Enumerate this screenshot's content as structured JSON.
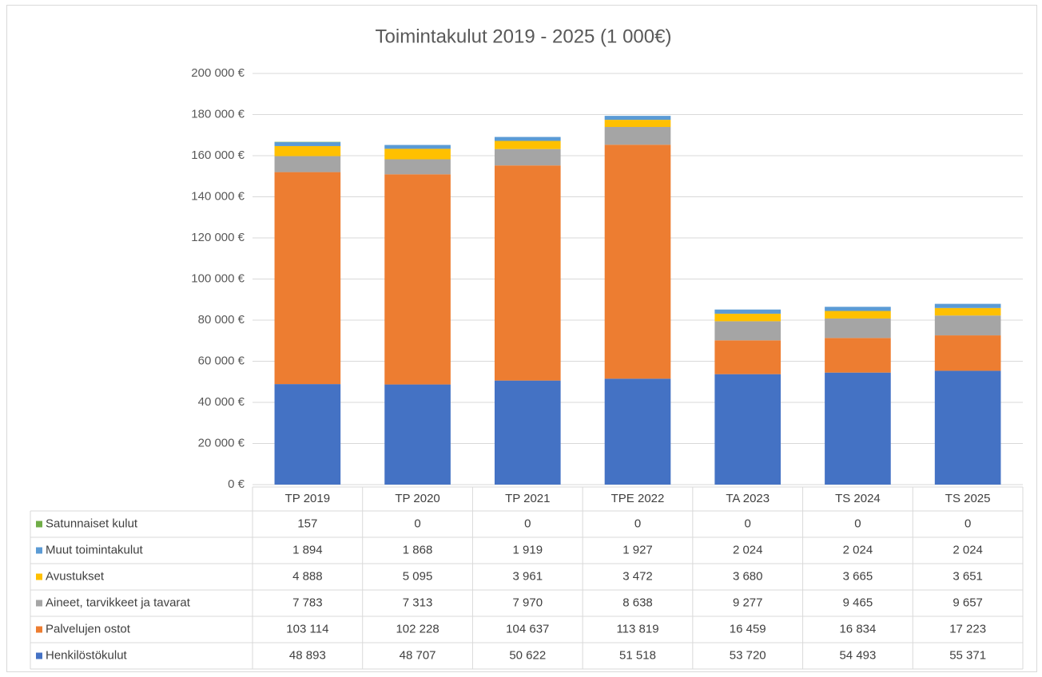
{
  "chart_data": {
    "type": "bar",
    "stacked": true,
    "title": "Toimintakulut 2019 - 2025 (1 000€)",
    "categories": [
      "TP 2019",
      "TP 2020",
      "TP 2021",
      "TPE 2022",
      "TA 2023",
      "TS 2024",
      "TS 2025"
    ],
    "series": [
      {
        "name": "Henkilöstökulut",
        "color": "#4472c4",
        "values": [
          48893,
          48707,
          50622,
          51518,
          53720,
          54493,
          55371
        ],
        "value_labels": [
          "48 893",
          "48 707",
          "50 622",
          "51 518",
          "53 720",
          "54 493",
          "55 371"
        ]
      },
      {
        "name": "Palvelujen ostot",
        "color": "#ed7d31",
        "values": [
          103114,
          102228,
          104637,
          113819,
          16459,
          16834,
          17223
        ],
        "value_labels": [
          "103 114",
          "102 228",
          "104 637",
          "113 819",
          "16 459",
          "16 834",
          "17 223"
        ]
      },
      {
        "name": "Aineet, tarvikkeet ja tavarat",
        "color": "#a5a5a5",
        "values": [
          7783,
          7313,
          7970,
          8638,
          9277,
          9465,
          9657
        ],
        "value_labels": [
          "7 783",
          "7 313",
          "7 970",
          "8 638",
          "9 277",
          "9 465",
          "9 657"
        ]
      },
      {
        "name": "Avustukset",
        "color": "#ffc000",
        "values": [
          4888,
          5095,
          3961,
          3472,
          3680,
          3665,
          3651
        ],
        "value_labels": [
          "4 888",
          "5 095",
          "3 961",
          "3 472",
          "3 680",
          "3 665",
          "3 651"
        ]
      },
      {
        "name": "Muut toimintakulut",
        "color": "#5b9bd5",
        "values": [
          1894,
          1868,
          1919,
          1927,
          2024,
          2024,
          2024
        ],
        "value_labels": [
          "1 894",
          "1 868",
          "1 919",
          "1 927",
          "2 024",
          "2 024",
          "2 024"
        ]
      },
      {
        "name": "Satunnaiset kulut",
        "color": "#70ad47",
        "values": [
          157,
          0,
          0,
          0,
          0,
          0,
          0
        ]
      }
    ],
    "ylim": [
      0,
      200000
    ],
    "yticks": [
      {
        "value": 0,
        "label": "0 €"
      },
      {
        "value": 20000,
        "label": "20 000 €"
      },
      {
        "value": 40000,
        "label": "40 000 €"
      },
      {
        "value": 60000,
        "label": "60 000 €"
      },
      {
        "value": 80000,
        "label": "80 000 €"
      },
      {
        "value": 100000,
        "label": "100 000 €"
      },
      {
        "value": 120000,
        "label": "120 000 €"
      },
      {
        "value": 140000,
        "label": "140 000 €"
      },
      {
        "value": 160000,
        "label": "160 000 €"
      },
      {
        "value": 180000,
        "label": "180 000 €"
      },
      {
        "value": 200000,
        "label": "200 000 €"
      }
    ],
    "grid": true
  }
}
